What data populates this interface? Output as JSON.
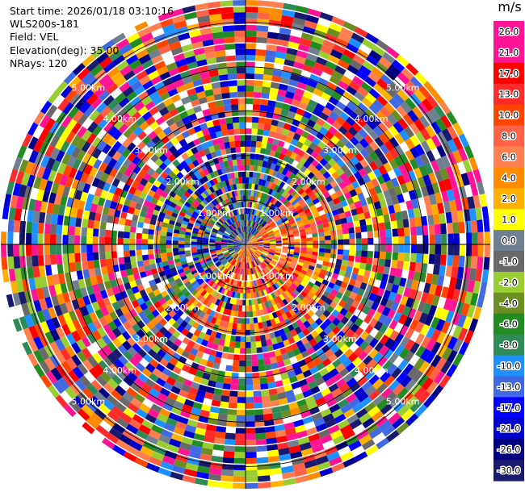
{
  "info": {
    "start_time": "Start time: 2026/01/18 03:10:16",
    "instrument": "WLS200s-181",
    "field": "Field: VEL",
    "elevation": "Elevation(deg): 35.00",
    "nrays": "NRays: 120"
  },
  "chart_data": {
    "type": "polar-ppi",
    "field": "VEL",
    "nrays": 120,
    "range_rings_km": [
      1,
      2,
      3,
      4,
      5
    ],
    "ring_labels": [
      "1.00km",
      "2.00km",
      "3.00km",
      "4.00km",
      "5.00km"
    ],
    "max_range_km": 5.5,
    "colorbar": {
      "unit": "m/s",
      "tick_labels": [
        "26.0",
        "21.0",
        "17.0",
        "13.0",
        "10.0",
        "8.0",
        "6.0",
        "4.0",
        "2.0",
        "1.0",
        "0.0",
        "-1.0",
        "-2.0",
        "-4.0",
        "-6.0",
        "-8.0",
        "-10.0",
        "-13.0",
        "-17.0",
        "-21.0",
        "-26.0",
        "-30.0"
      ],
      "colors": [
        "#ff1493",
        "#ff1493",
        "#ff0000",
        "#ff2a2a",
        "#ff4500",
        "#ff6347",
        "#ff7f50",
        "#ff8c00",
        "#ffb000",
        "#ffff00",
        "#708090",
        "#696969",
        "#9acd32",
        "#6b8e23",
        "#228b22",
        "#2e8b57",
        "#1e90ff",
        "#4169e1",
        "#0000ff",
        "#0000cd",
        "#000080",
        "#191970"
      ]
    },
    "pattern": "noisy velocity field; inner ~2 km positive (warm) on east/south side and negative (cool) on west/north side; outer range noise"
  }
}
